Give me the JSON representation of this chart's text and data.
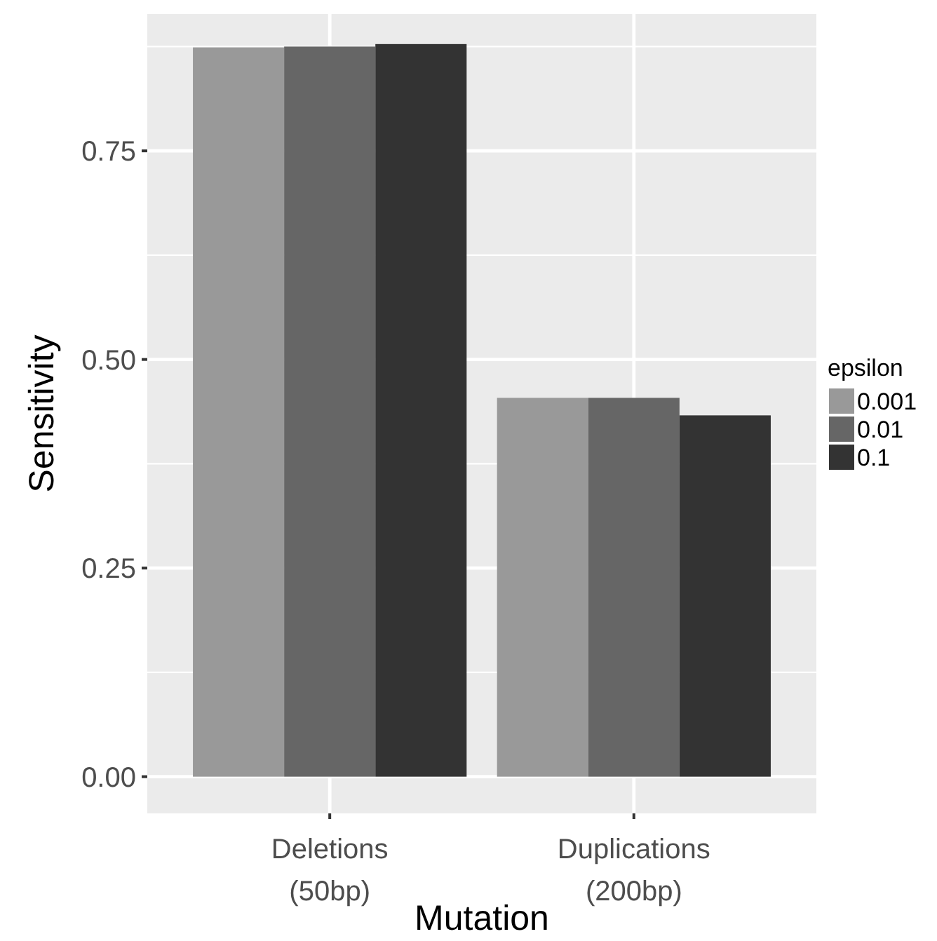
{
  "chart_data": {
    "type": "bar",
    "xlabel": "Mutation",
    "ylabel": "Sensitivity",
    "legend_title": "epsilon",
    "categories": [
      "Deletions\n(50bp)",
      "Duplications\n(200bp)"
    ],
    "series": [
      {
        "name": "0.001",
        "color": "#999999",
        "values": [
          0.874,
          0.454
        ]
      },
      {
        "name": "0.01",
        "color": "#666666",
        "values": [
          0.875,
          0.454
        ]
      },
      {
        "name": "0.1",
        "color": "#333333",
        "values": [
          0.878,
          0.433
        ]
      }
    ],
    "ylim": [
      -0.044,
      0.914
    ],
    "yticks": [
      {
        "value": 0,
        "label": "0.00"
      },
      0.25,
      {
        "value": 0.5,
        "label": "0.50"
      },
      0.75
    ],
    "grid": true,
    "legend": "right"
  }
}
